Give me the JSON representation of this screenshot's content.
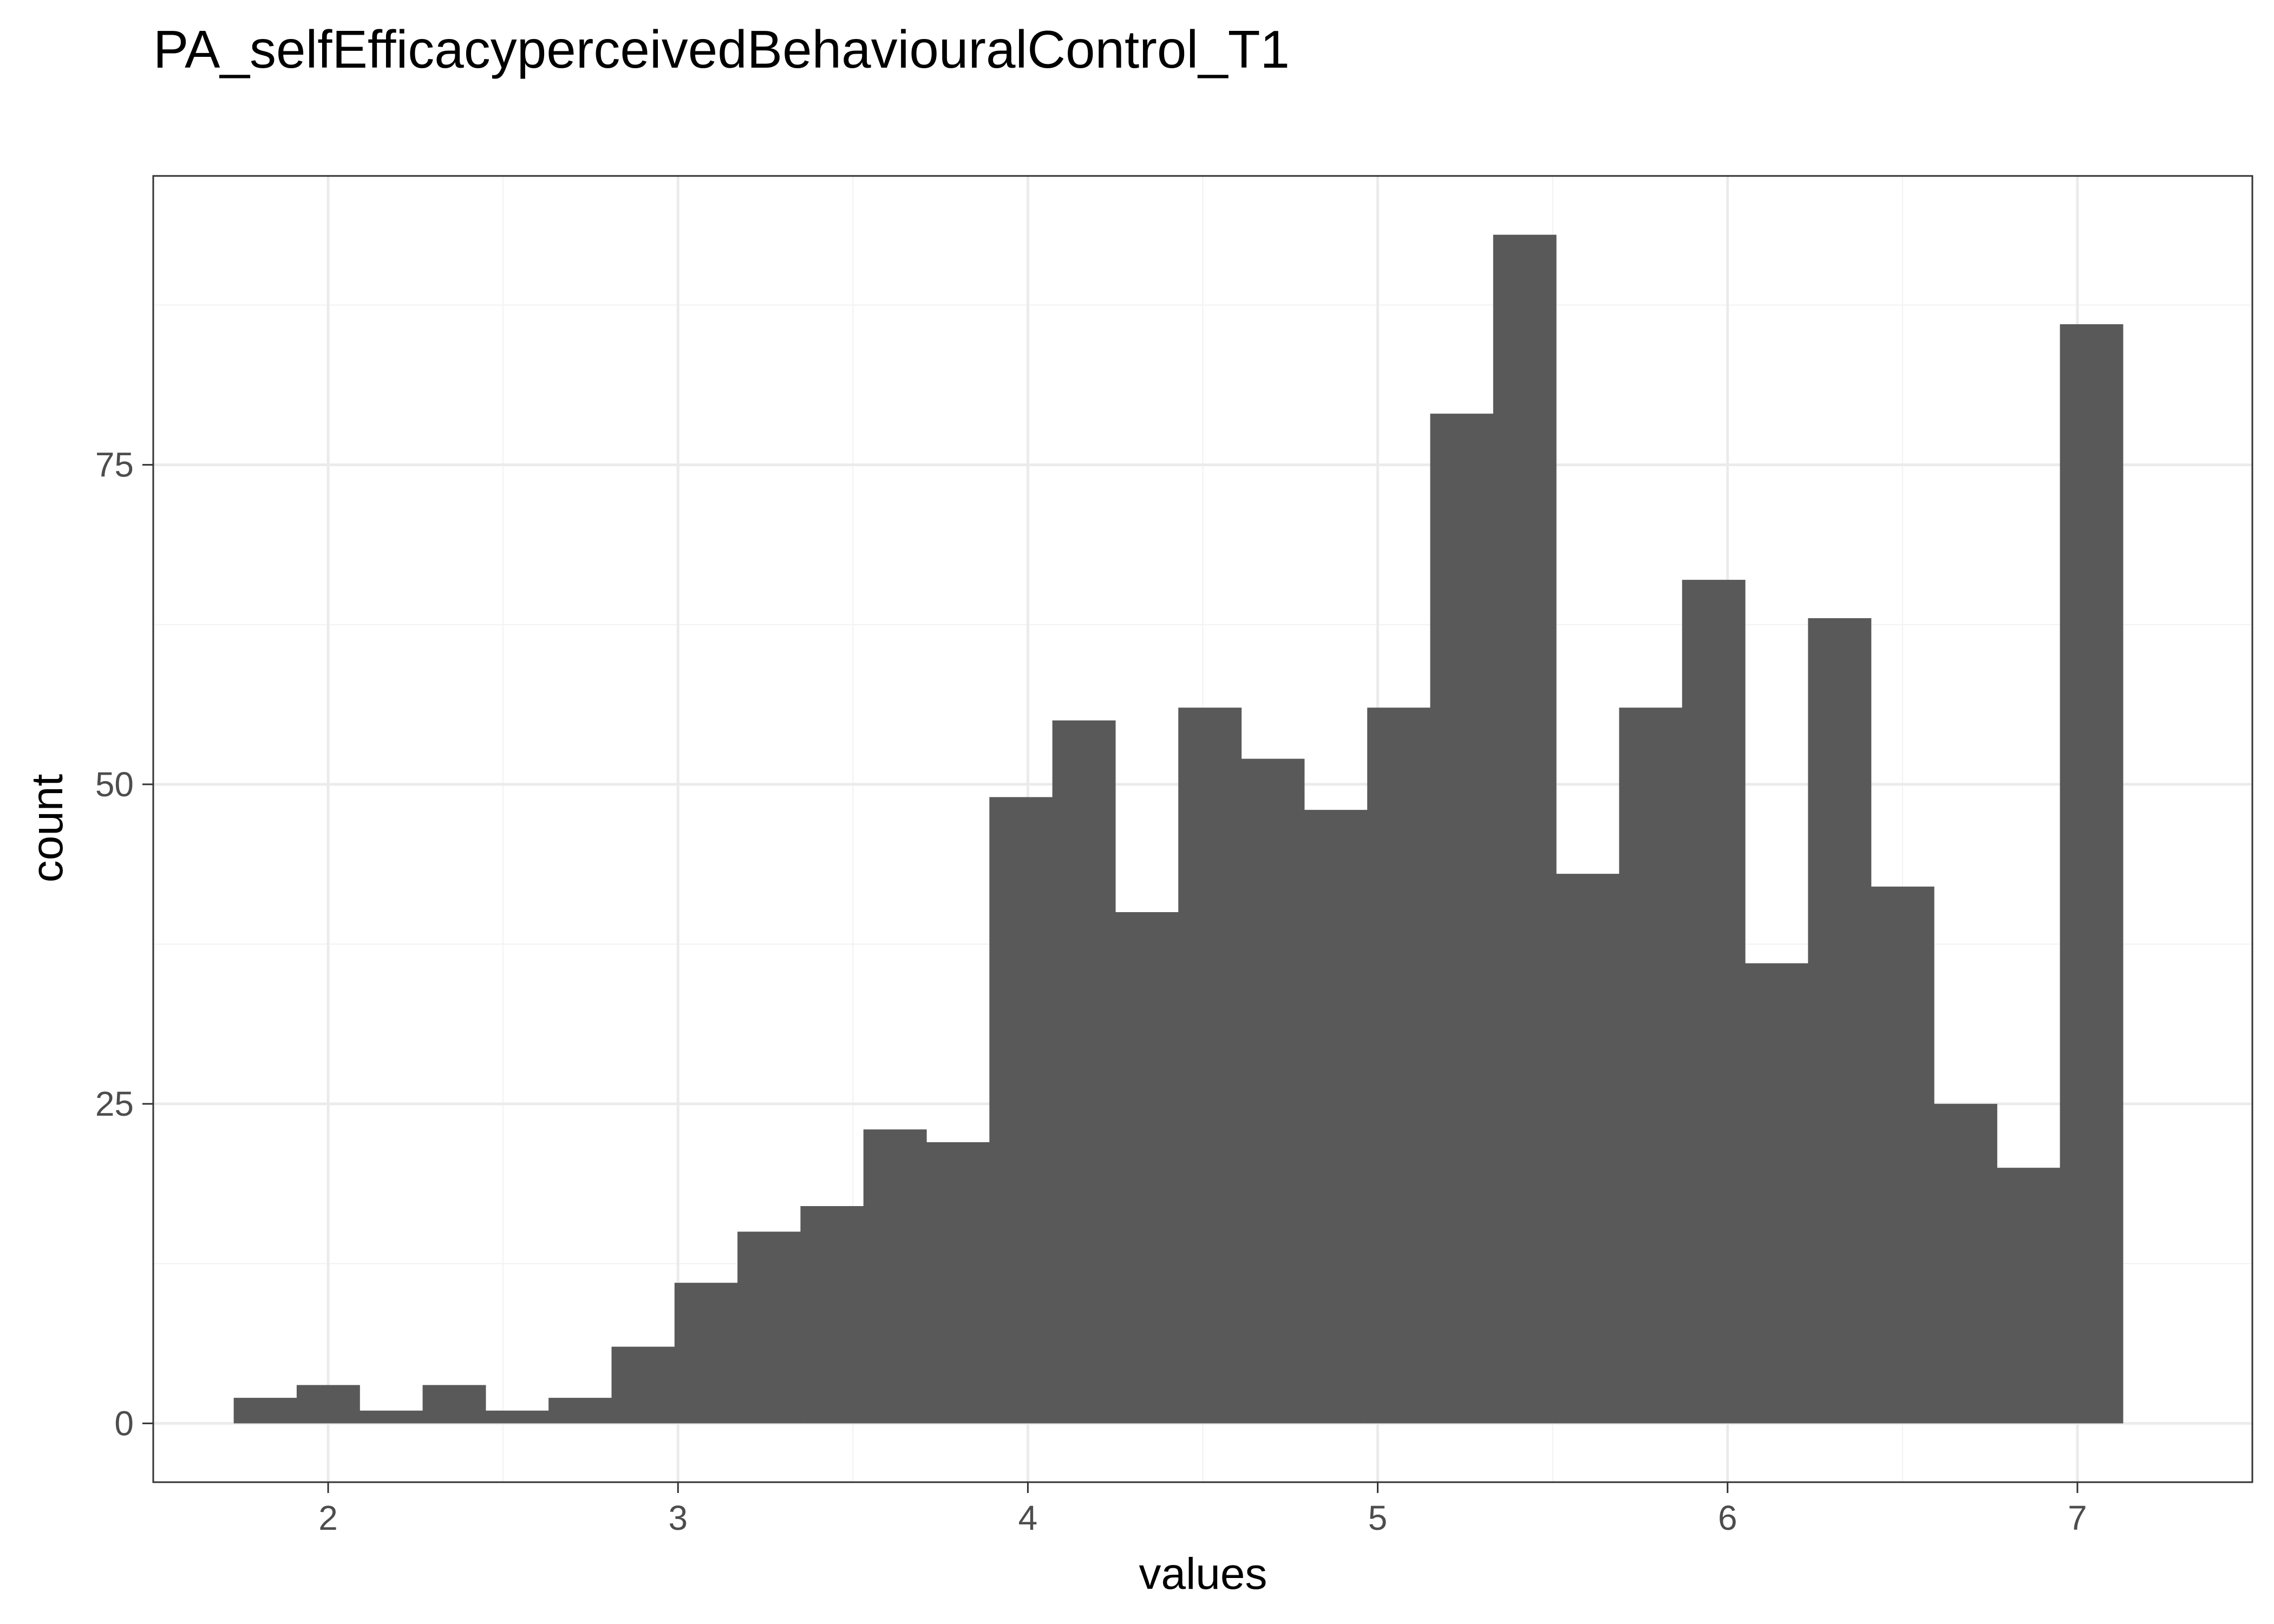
{
  "chart_data": {
    "type": "bar",
    "title": "PA_selfEfficacyperceivedBehaviouralControl_T1",
    "xlabel": "values",
    "ylabel": "count",
    "xlim": [
      1.5,
      7.5
    ],
    "ylim": [
      -4.6,
      97.6
    ],
    "grid": true,
    "x_ticks": [
      2,
      3,
      4,
      5,
      6,
      7
    ],
    "y_ticks": [
      0,
      25,
      50,
      75
    ],
    "bin_width": 0.18,
    "bins": [
      {
        "x0": 1.73,
        "count": 2
      },
      {
        "x0": 1.91,
        "count": 3
      },
      {
        "x0": 2.09,
        "count": 1
      },
      {
        "x0": 2.27,
        "count": 3
      },
      {
        "x0": 2.45,
        "count": 1
      },
      {
        "x0": 2.63,
        "count": 2
      },
      {
        "x0": 2.81,
        "count": 6
      },
      {
        "x0": 2.99,
        "count": 11
      },
      {
        "x0": 3.17,
        "count": 15
      },
      {
        "x0": 3.35,
        "count": 17
      },
      {
        "x0": 3.53,
        "count": 23
      },
      {
        "x0": 3.71,
        "count": 22
      },
      {
        "x0": 3.89,
        "count": 49
      },
      {
        "x0": 4.07,
        "count": 55
      },
      {
        "x0": 4.25,
        "count": 40
      },
      {
        "x0": 4.43,
        "count": 56
      },
      {
        "x0": 4.61,
        "count": 52
      },
      {
        "x0": 4.79,
        "count": 48
      },
      {
        "x0": 4.97,
        "count": 56
      },
      {
        "x0": 5.15,
        "count": 79
      },
      {
        "x0": 5.33,
        "count": 93
      },
      {
        "x0": 5.51,
        "count": 43
      },
      {
        "x0": 5.69,
        "count": 56
      },
      {
        "x0": 5.87,
        "count": 66
      },
      {
        "x0": 6.05,
        "count": 36
      },
      {
        "x0": 6.23,
        "count": 63
      },
      {
        "x0": 6.41,
        "count": 42
      },
      {
        "x0": 6.59,
        "count": 25
      },
      {
        "x0": 6.77,
        "count": 20
      },
      {
        "x0": 6.95,
        "count": 86
      }
    ],
    "colors": {
      "bar": "#595959",
      "panel_border": "#333333",
      "grid_major": "#ebebeb",
      "grid_minor": "#f2f2f2",
      "tick_label": "#4d4d4d"
    }
  }
}
